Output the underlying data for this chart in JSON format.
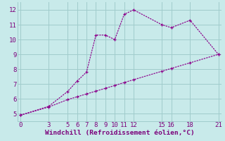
{
  "xlabel": "Windchill (Refroidissement éolien,°C)",
  "line1_x": [
    0,
    3,
    5,
    6,
    7,
    8,
    9,
    10,
    11,
    12,
    15,
    16,
    18,
    21
  ],
  "line1_y": [
    4.9,
    5.5,
    6.5,
    7.2,
    7.8,
    10.3,
    10.3,
    10.0,
    11.7,
    12.0,
    11.0,
    10.8,
    11.3,
    9.0
  ],
  "line2_x": [
    0,
    3,
    5,
    6,
    7,
    8,
    9,
    10,
    11,
    12,
    15,
    16,
    18,
    21
  ],
  "line2_y": [
    4.9,
    5.45,
    5.95,
    6.14,
    6.33,
    6.52,
    6.71,
    6.9,
    7.1,
    7.29,
    7.86,
    8.05,
    8.43,
    9.0
  ],
  "line_color": "#8B008B",
  "bg_color": "#c8eaea",
  "grid_color": "#a0cccc",
  "text_color": "#7b007b",
  "ylim": [
    4.5,
    12.5
  ],
  "xlim": [
    -0.3,
    21.3
  ],
  "yticks": [
    5,
    6,
    7,
    8,
    9,
    10,
    11,
    12
  ],
  "xticks": [
    0,
    3,
    5,
    6,
    7,
    8,
    9,
    10,
    11,
    12,
    15,
    16,
    18,
    21
  ],
  "ylabel_fontsize": 6.8,
  "xlabel_fontsize": 6.8,
  "tick_fontsize": 6.5
}
